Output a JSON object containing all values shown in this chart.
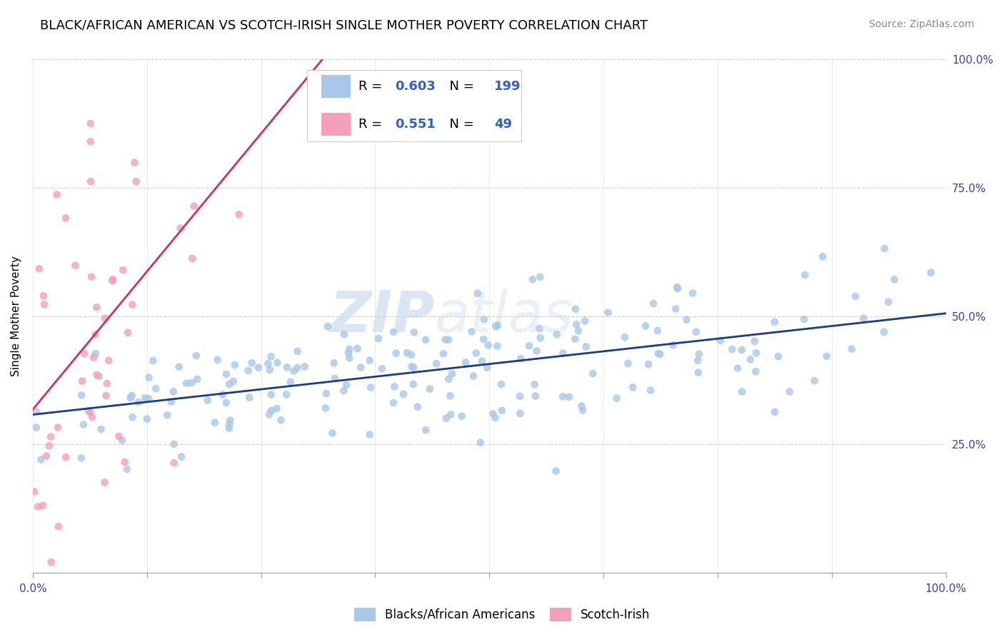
{
  "title": "BLACK/AFRICAN AMERICAN VS SCOTCH-IRISH SINGLE MOTHER POVERTY CORRELATION CHART",
  "source": "Source: ZipAtlas.com",
  "ylabel": "Single Mother Poverty",
  "watermark": "ZIPatlas",
  "blue_R": 0.603,
  "blue_N": 199,
  "pink_R": 0.551,
  "pink_N": 49,
  "blue_color": "#a8c8e8",
  "pink_color": "#f4a0b8",
  "blue_line_color": "#1a3a8a",
  "pink_line_color": "#d03060",
  "legend_label_blue": "Blacks/African Americans",
  "legend_label_pink": "Scotch-Irish",
  "xlim": [
    0.0,
    1.0
  ],
  "ylim": [
    0.0,
    1.0
  ],
  "background_color": "#ffffff",
  "title_fontsize": 13,
  "axis_label_fontsize": 11,
  "tick_fontsize": 11,
  "stat_color": "#3060c0",
  "label_color": "#4040a0"
}
